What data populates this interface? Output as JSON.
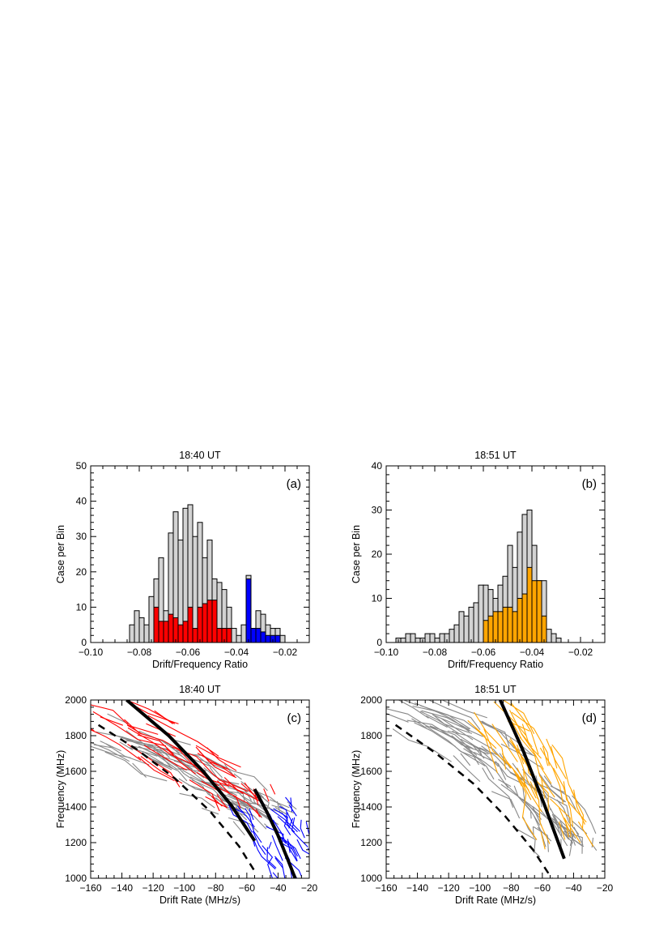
{
  "chart_data": [
    {
      "panel": "(a)",
      "type": "bar",
      "title": "18:40 UT",
      "xlabel": "Drift/Frequency Ratio",
      "ylabel": "Case per Bin",
      "xlim": [
        -0.1,
        -0.01
      ],
      "ylim": [
        0,
        50
      ],
      "xticks": [
        -0.1,
        -0.08,
        -0.06,
        -0.04,
        -0.02
      ],
      "xticklabels": [
        "−0.10",
        "−0.08",
        "−0.06",
        "−0.04",
        "−0.02"
      ],
      "yticks": [
        0,
        10,
        20,
        30,
        40,
        50
      ],
      "yticklabels": [
        "0",
        "10",
        "20",
        "30",
        "40",
        "50"
      ],
      "bin_width": 0.002,
      "series": [
        {
          "color": "#d3d3d3",
          "values": [
            [
              -0.083,
              5
            ],
            [
              -0.081,
              9
            ],
            [
              -0.079,
              7
            ],
            [
              -0.077,
              5
            ],
            [
              -0.075,
              13
            ],
            [
              -0.073,
              18
            ],
            [
              -0.071,
              24
            ],
            [
              -0.069,
              9
            ],
            [
              -0.067,
              31
            ],
            [
              -0.065,
              37
            ],
            [
              -0.063,
              29
            ],
            [
              -0.061,
              38
            ],
            [
              -0.059,
              39
            ],
            [
              -0.057,
              30
            ],
            [
              -0.055,
              34
            ],
            [
              -0.053,
              24
            ],
            [
              -0.051,
              29
            ],
            [
              -0.049,
              18
            ],
            [
              -0.047,
              17
            ],
            [
              -0.045,
              15
            ],
            [
              -0.043,
              10
            ],
            [
              -0.041,
              4
            ],
            [
              -0.039,
              2
            ],
            [
              -0.037,
              5
            ],
            [
              -0.035,
              19
            ],
            [
              -0.033,
              4
            ],
            [
              -0.031,
              9
            ],
            [
              -0.029,
              8
            ],
            [
              -0.027,
              5
            ],
            [
              -0.025,
              4
            ],
            [
              -0.023,
              4
            ],
            [
              -0.021,
              2
            ]
          ]
        },
        {
          "color": "#ff0000",
          "values": [
            [
              -0.073,
              10
            ],
            [
              -0.071,
              6
            ],
            [
              -0.069,
              6
            ],
            [
              -0.067,
              8
            ],
            [
              -0.065,
              7
            ],
            [
              -0.063,
              5
            ],
            [
              -0.061,
              6
            ],
            [
              -0.059,
              10
            ],
            [
              -0.057,
              4
            ],
            [
              -0.055,
              10
            ],
            [
              -0.053,
              11
            ],
            [
              -0.051,
              12
            ],
            [
              -0.049,
              12
            ],
            [
              -0.047,
              4
            ],
            [
              -0.045,
              4
            ],
            [
              -0.043,
              4
            ]
          ]
        },
        {
          "color": "#0000ff",
          "values": [
            [
              -0.035,
              18
            ],
            [
              -0.033,
              4
            ],
            [
              -0.031,
              4
            ],
            [
              -0.029,
              3
            ],
            [
              -0.027,
              2
            ],
            [
              -0.025,
              2
            ],
            [
              -0.023,
              2
            ]
          ]
        }
      ]
    },
    {
      "panel": "(b)",
      "type": "bar",
      "title": "18:51 UT",
      "xlabel": "Drift/Frequency Ratio",
      "ylabel": "Case per Bin",
      "xlim": [
        -0.1,
        -0.01
      ],
      "ylim": [
        0,
        40
      ],
      "xticks": [
        -0.1,
        -0.08,
        -0.06,
        -0.04,
        -0.02
      ],
      "xticklabels": [
        "−0.10",
        "−0.08",
        "−0.06",
        "−0.04",
        "−0.02"
      ],
      "yticks": [
        0,
        10,
        20,
        30,
        40
      ],
      "yticklabels": [
        "0",
        "10",
        "20",
        "30",
        "40"
      ],
      "bin_width": 0.002,
      "series": [
        {
          "color": "#d3d3d3",
          "values": [
            [
              -0.095,
              1
            ],
            [
              -0.093,
              1
            ],
            [
              -0.091,
              2
            ],
            [
              -0.089,
              2
            ],
            [
              -0.087,
              1
            ],
            [
              -0.085,
              1
            ],
            [
              -0.083,
              2
            ],
            [
              -0.081,
              2
            ],
            [
              -0.079,
              1
            ],
            [
              -0.077,
              2
            ],
            [
              -0.075,
              2
            ],
            [
              -0.073,
              3
            ],
            [
              -0.071,
              4
            ],
            [
              -0.069,
              7
            ],
            [
              -0.067,
              6
            ],
            [
              -0.065,
              8
            ],
            [
              -0.063,
              9
            ],
            [
              -0.061,
              13
            ],
            [
              -0.059,
              13
            ],
            [
              -0.057,
              12
            ],
            [
              -0.055,
              10
            ],
            [
              -0.053,
              13
            ],
            [
              -0.051,
              15
            ],
            [
              -0.049,
              22
            ],
            [
              -0.047,
              17
            ],
            [
              -0.045,
              25
            ],
            [
              -0.043,
              29
            ],
            [
              -0.041,
              30
            ],
            [
              -0.039,
              22
            ],
            [
              -0.037,
              14
            ],
            [
              -0.035,
              14
            ],
            [
              -0.033,
              3
            ],
            [
              -0.031,
              2
            ],
            [
              -0.029,
              1
            ]
          ]
        },
        {
          "color": "#ffa500",
          "values": [
            [
              -0.059,
              5
            ],
            [
              -0.057,
              6
            ],
            [
              -0.055,
              7
            ],
            [
              -0.053,
              7
            ],
            [
              -0.051,
              8
            ],
            [
              -0.049,
              8
            ],
            [
              -0.047,
              7
            ],
            [
              -0.045,
              10
            ],
            [
              -0.043,
              11
            ],
            [
              -0.041,
              17
            ],
            [
              -0.039,
              14
            ],
            [
              -0.037,
              14
            ],
            [
              -0.035,
              6
            ]
          ]
        }
      ]
    },
    {
      "panel": "(c)",
      "type": "line",
      "title": "18:40 UT",
      "xlabel": "Drift Rate (MHz/s)",
      "ylabel": "Frequency (MHz)",
      "xlim": [
        -160,
        -20
      ],
      "ylim": [
        1000,
        2000
      ],
      "xticks": [
        -160,
        -140,
        -120,
        -100,
        -80,
        -60,
        -40,
        -20
      ],
      "xticklabels": [
        "−160",
        "−140",
        "−120",
        "−100",
        "−80",
        "−60",
        "−40",
        "−20"
      ],
      "yticks": [
        1000,
        1200,
        1400,
        1600,
        1800,
        2000
      ],
      "yticklabels": [
        "1000",
        "1200",
        "1400",
        "1600",
        "1800",
        "2000"
      ],
      "series": [
        {
          "color": "#888888",
          "style": "bundle",
          "x": [
            -160,
            -145,
            -130,
            -118,
            -105,
            -95,
            -84,
            -75,
            -66,
            -58,
            -50,
            -44
          ],
          "y": [
            1850,
            1800,
            1750,
            1700,
            1640,
            1600,
            1550,
            1500,
            1460,
            1420,
            1380,
            1330
          ]
        },
        {
          "color": "#ff0000",
          "style": "bundle",
          "x": [
            -152,
            -138,
            -124,
            -110,
            -97,
            -86,
            -76,
            -67,
            -59
          ],
          "y": [
            1950,
            1880,
            1810,
            1740,
            1670,
            1600,
            1530,
            1460,
            1390
          ]
        },
        {
          "color": "#0000ff",
          "style": "bundle",
          "x": [
            -52,
            -47,
            -43,
            -39,
            -35,
            -31,
            -27
          ],
          "y": [
            1420,
            1360,
            1300,
            1240,
            1180,
            1120,
            1050
          ]
        },
        {
          "color": "#000000",
          "style": "thick",
          "x": [
            -137,
            -110,
            -88,
            -70,
            -55
          ],
          "y": [
            2000,
            1800,
            1600,
            1410,
            1210
          ]
        },
        {
          "color": "#000000",
          "style": "thick",
          "x": [
            -55,
            -47,
            -40,
            -34,
            -29
          ],
          "y": [
            1500,
            1370,
            1240,
            1110,
            1000
          ]
        },
        {
          "color": "#000000",
          "style": "dashed",
          "x": [
            -155,
            -130,
            -106,
            -84,
            -65,
            -55
          ],
          "y": [
            1860,
            1720,
            1560,
            1380,
            1180,
            1040
          ]
        }
      ]
    },
    {
      "panel": "(d)",
      "type": "line",
      "title": "18:51 UT",
      "xlabel": "Drift Rate (MHz/s)",
      "ylabel": "Frequency (MHz)",
      "xlim": [
        -160,
        -20
      ],
      "ylim": [
        1000,
        2000
      ],
      "xticks": [
        -160,
        -140,
        -120,
        -100,
        -80,
        -60,
        -40,
        -20
      ],
      "xticklabels": [
        "−160",
        "−140",
        "−120",
        "−100",
        "−80",
        "−60",
        "−40",
        "−20"
      ],
      "yticks": [
        1000,
        1200,
        1400,
        1600,
        1800,
        2000
      ],
      "yticklabels": [
        "1000",
        "1200",
        "1400",
        "1600",
        "1800",
        "2000"
      ],
      "series": [
        {
          "color": "#888888",
          "style": "bundle",
          "x": [
            -155,
            -140,
            -126,
            -114,
            -103,
            -93,
            -84,
            -76,
            -68,
            -61,
            -55,
            -49,
            -44
          ],
          "y": [
            1980,
            1930,
            1870,
            1810,
            1750,
            1680,
            1610,
            1540,
            1470,
            1400,
            1330,
            1260,
            1180
          ]
        },
        {
          "color": "#ffa500",
          "style": "bundle",
          "x": [
            -90,
            -82,
            -74,
            -67,
            -61,
            -55,
            -50,
            -45
          ],
          "y": [
            1950,
            1860,
            1760,
            1660,
            1550,
            1440,
            1330,
            1210
          ]
        },
        {
          "color": "#000000",
          "style": "thick",
          "x": [
            -87,
            -72,
            -59,
            -46
          ],
          "y": [
            2000,
            1710,
            1420,
            1110
          ]
        },
        {
          "color": "#000000",
          "style": "dashed",
          "x": [
            -154,
            -128,
            -104,
            -84,
            -66,
            -54
          ],
          "y": [
            1860,
            1700,
            1530,
            1350,
            1160,
            1000
          ]
        }
      ]
    }
  ]
}
